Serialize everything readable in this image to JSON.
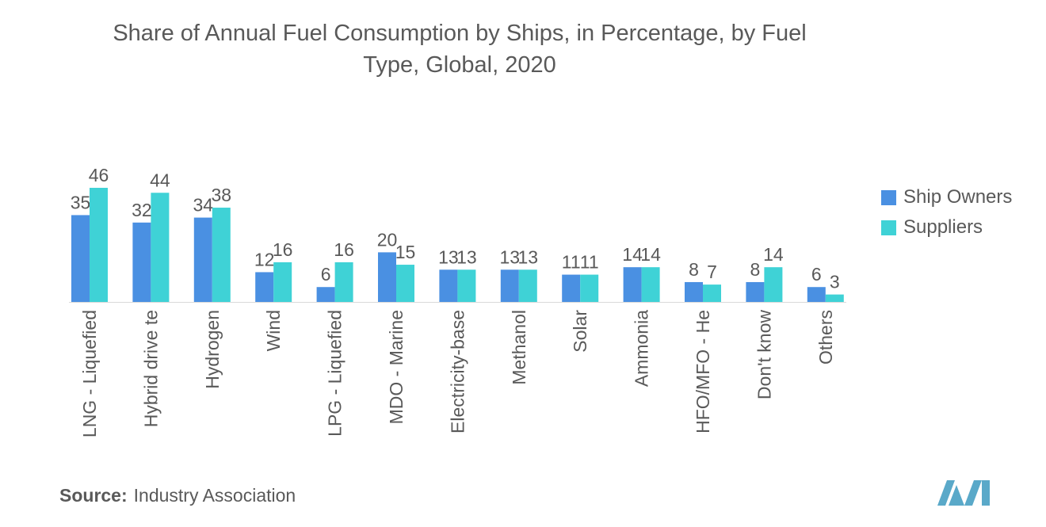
{
  "title_line1": "Share of Annual Fuel Consumption by Ships, in Percentage, by Fuel",
  "title_line2": "Type, Global, 2020",
  "source_label": "Source:",
  "source_text": "Industry Association",
  "colors": {
    "ship_owners": "#4a90e2",
    "suppliers": "#3fd2d6",
    "logo": "#5aa9c9"
  },
  "chart_data": {
    "type": "bar",
    "categories": [
      "LNG - Liquefied",
      "Hybrid drive te",
      "Hydrogen",
      "Wind",
      "LPG - Liquefied",
      "MDO - Marine",
      "Electricity-base",
      "Methanol",
      "Solar",
      "Ammonia",
      "HFO/MFO - He",
      "Don't know",
      "Others"
    ],
    "series": [
      {
        "name": "Ship Owners",
        "values": [
          35,
          32,
          34,
          12,
          6,
          20,
          13,
          13,
          11,
          14,
          8,
          8,
          6
        ]
      },
      {
        "name": "Suppliers",
        "values": [
          46,
          44,
          38,
          16,
          16,
          15,
          13,
          13,
          11,
          14,
          7,
          14,
          3
        ]
      }
    ],
    "ylim": [
      0,
      46
    ],
    "grid": false,
    "legend_position": "right",
    "data_labels": true
  }
}
